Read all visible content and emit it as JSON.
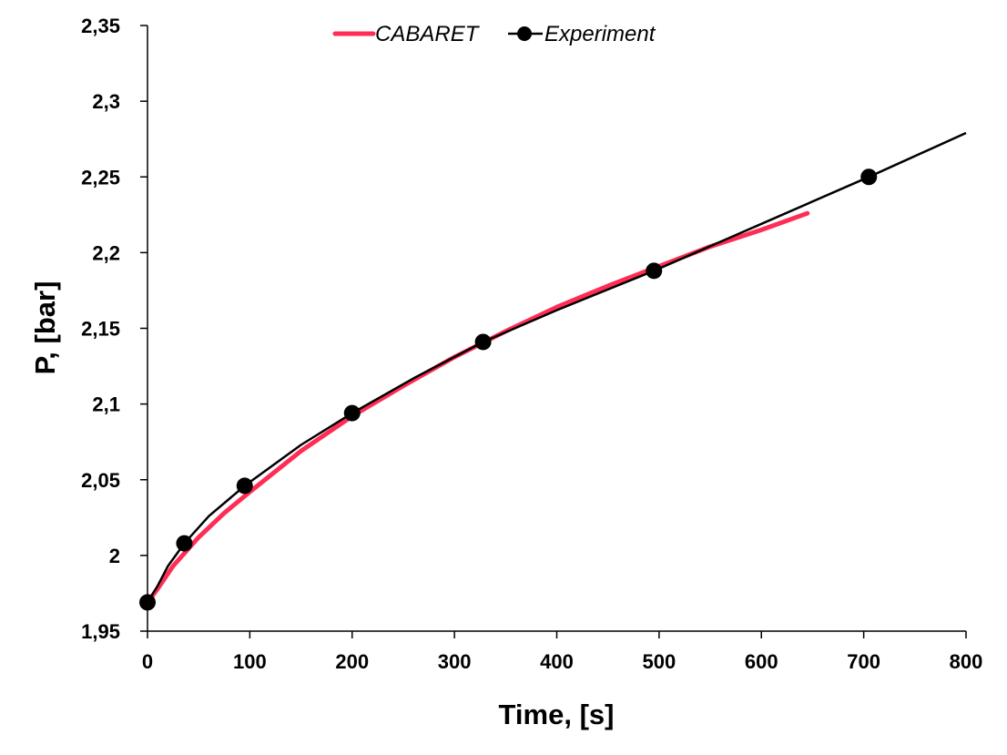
{
  "chart_data": {
    "type": "line",
    "title": "",
    "xlabel": "Time, [s]",
    "ylabel": "P, [bar]",
    "xlim": [
      0,
      800
    ],
    "ylim": [
      1.95,
      2.35
    ],
    "x_ticks": [
      0,
      100,
      200,
      300,
      400,
      500,
      600,
      700,
      800
    ],
    "x_tick_labels": [
      "0",
      "100",
      "200",
      "300",
      "400",
      "500",
      "600",
      "700",
      "800"
    ],
    "y_ticks": [
      1.95,
      2.0,
      2.05,
      2.1,
      2.15,
      2.2,
      2.25,
      2.3,
      2.35
    ],
    "y_tick_labels": [
      "1,95",
      "2",
      "2,05",
      "2,1",
      "2,15",
      "2,2",
      "2,25",
      "2,3",
      "2,35"
    ],
    "grid": false,
    "legend_position": "top-center",
    "series": [
      {
        "name": "CABARET",
        "color": "#ff2d55",
        "marker": "none",
        "x": [
          0,
          10,
          25,
          50,
          75,
          100,
          150,
          200,
          250,
          300,
          350,
          400,
          450,
          500,
          550,
          600,
          645
        ],
        "y": [
          1.969,
          1.978,
          1.993,
          2.012,
          2.028,
          2.042,
          2.069,
          2.092,
          2.112,
          2.131,
          2.148,
          2.164,
          2.178,
          2.191,
          2.204,
          2.215,
          2.226
        ]
      },
      {
        "name": "Experiment",
        "color": "#000000",
        "marker": "circle",
        "x": [
          0,
          36,
          95,
          200,
          328,
          495,
          705
        ],
        "y": [
          1.969,
          2.008,
          2.046,
          2.094,
          2.141,
          2.188,
          2.25
        ],
        "line_x": [
          0,
          10,
          20,
          36,
          60,
          95,
          150,
          200,
          260,
          328,
          400,
          495,
          600,
          705,
          800
        ],
        "line_y": [
          1.969,
          1.98,
          1.993,
          2.008,
          2.026,
          2.046,
          2.073,
          2.094,
          2.117,
          2.141,
          2.162,
          2.188,
          2.219,
          2.25,
          2.279
        ]
      }
    ]
  }
}
